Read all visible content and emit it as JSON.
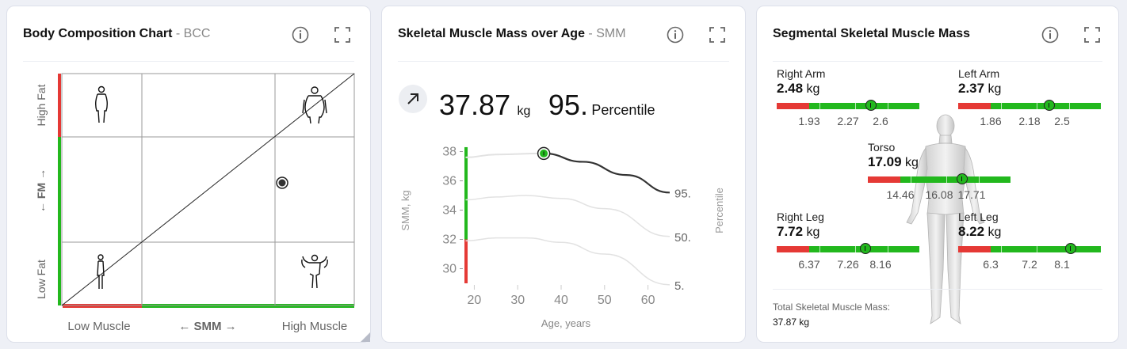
{
  "cards": {
    "bcc": {
      "title": "Body Composition Chart",
      "abbr": "BCC"
    },
    "smm": {
      "title": "Skeletal Muscle Mass over Age",
      "abbr": "SMM"
    },
    "seg": {
      "title": "Segmental Skeletal Muscle Mass"
    }
  },
  "icons": {
    "info": "info-icon",
    "expand": "expand-icon",
    "trend": "arrow-up-right-icon"
  },
  "colors": {
    "red": "#e53935",
    "green": "#22b81d",
    "line": "#333333"
  },
  "bcc": {
    "y_top": "High Fat",
    "y_mid_label": "FM",
    "y_bottom": "Low Fat",
    "x_left": "Low Muscle",
    "x_mid_label": "SMM",
    "x_right": "High Muscle",
    "arrow_left": "←",
    "arrow_right": "→",
    "arrow_down": "←",
    "arrow_up": "→"
  },
  "smm": {
    "value": "37.87",
    "unit": "kg",
    "percentile": "95.",
    "percentile_label": "Percentile",
    "chart_data": {
      "type": "line",
      "xlabel": "Age, years",
      "ylabel": "SMM, kg",
      "y2label": "Percentile",
      "xlim": [
        17,
        65
      ],
      "ylim": [
        29,
        39
      ],
      "x_ticks": [
        20,
        30,
        40,
        50,
        60
      ],
      "y_ticks": [
        30,
        32,
        34,
        36,
        38
      ],
      "series": [
        {
          "name": "95.",
          "x": [
            18,
            25,
            36,
            45,
            55,
            65
          ],
          "y": [
            37.6,
            37.8,
            37.87,
            37.3,
            36.4,
            35.2
          ]
        },
        {
          "name": "50.",
          "x": [
            18,
            25,
            32,
            40,
            50,
            65
          ],
          "y": [
            34.7,
            34.9,
            35.0,
            34.8,
            34.1,
            32.2
          ]
        },
        {
          "name": "5.",
          "x": [
            18,
            25,
            32,
            40,
            50,
            65
          ],
          "y": [
            31.9,
            32.1,
            32.1,
            31.8,
            31.0,
            28.9
          ]
        }
      ],
      "point": {
        "x": 36,
        "y": 37.87
      },
      "zones": {
        "red": [
          29,
          32
        ],
        "green": [
          32,
          38.3
        ]
      }
    }
  },
  "seg": {
    "unit": "kg",
    "segments": [
      {
        "name": "Right Arm",
        "value": "2.48",
        "ticks": [
          "1.93",
          "2.27",
          "2.6"
        ]
      },
      {
        "name": "Left Arm",
        "value": "2.37",
        "ticks": [
          "1.86",
          "2.18",
          "2.5"
        ]
      },
      {
        "name": "Torso",
        "value": "17.09",
        "ticks": [
          "14.46",
          "16.08",
          "17.71"
        ]
      },
      {
        "name": "Right Leg",
        "value": "7.72",
        "ticks": [
          "6.37",
          "7.26",
          "8.16"
        ]
      },
      {
        "name": "Left Leg",
        "value": "8.22",
        "ticks": [
          "6.3",
          "7.2",
          "8.1"
        ]
      }
    ],
    "total_label": "Total Skeletal Muscle Mass:",
    "total_value": "37.87 kg"
  }
}
